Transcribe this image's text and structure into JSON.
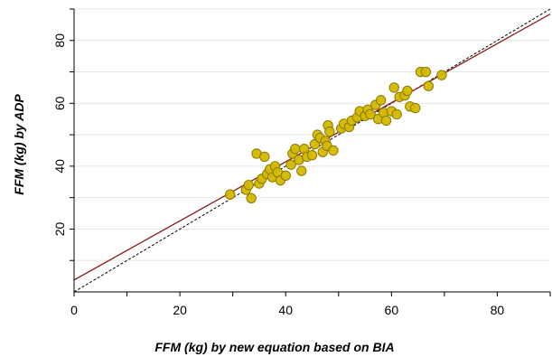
{
  "chart_data": {
    "type": "scatter",
    "xlabel": "FFM (kg) by new equation based on BIA",
    "ylabel": "FFM (kg) by  ADP",
    "xlim": [
      0,
      90
    ],
    "ylim": [
      0,
      90
    ],
    "xticks": [
      0,
      20,
      40,
      60,
      80
    ],
    "yticks": [
      20,
      40,
      60,
      80
    ],
    "grid": "horizontal",
    "legend": "none",
    "colors": {
      "point_fill": "#d4b800",
      "point_stroke": "#8c7a00",
      "regression_line": "#8b1a1a",
      "identity_line": "#000000",
      "grid": "#e6e6e6"
    },
    "regression_line": {
      "intercept": 3.8,
      "slope": 0.94,
      "style": "solid"
    },
    "identity_line": {
      "intercept": 0,
      "slope": 1,
      "style": "dashed"
    },
    "points": [
      {
        "x": 29.5,
        "y": 31.0
      },
      {
        "x": 32.5,
        "y": 32.5
      },
      {
        "x": 33.0,
        "y": 34.0
      },
      {
        "x": 33.5,
        "y": 29.8
      },
      {
        "x": 34.5,
        "y": 44.0
      },
      {
        "x": 35.0,
        "y": 34.5
      },
      {
        "x": 35.5,
        "y": 36.0
      },
      {
        "x": 36.0,
        "y": 43.0
      },
      {
        "x": 36.5,
        "y": 37.5
      },
      {
        "x": 37.0,
        "y": 39.0
      },
      {
        "x": 37.5,
        "y": 36.5
      },
      {
        "x": 38.0,
        "y": 40.0
      },
      {
        "x": 38.5,
        "y": 38.0
      },
      {
        "x": 39.0,
        "y": 35.5
      },
      {
        "x": 40.0,
        "y": 37.0
      },
      {
        "x": 41.0,
        "y": 40.5
      },
      {
        "x": 41.3,
        "y": 44.0
      },
      {
        "x": 41.8,
        "y": 45.5
      },
      {
        "x": 42.5,
        "y": 42.0
      },
      {
        "x": 43.0,
        "y": 38.5
      },
      {
        "x": 43.5,
        "y": 45.5
      },
      {
        "x": 44.0,
        "y": 43.0
      },
      {
        "x": 45.0,
        "y": 43.5
      },
      {
        "x": 45.5,
        "y": 47.0
      },
      {
        "x": 46.0,
        "y": 50.0
      },
      {
        "x": 46.5,
        "y": 49.0
      },
      {
        "x": 47.0,
        "y": 44.5
      },
      {
        "x": 47.5,
        "y": 48.0
      },
      {
        "x": 47.8,
        "y": 46.5
      },
      {
        "x": 48.0,
        "y": 53.0
      },
      {
        "x": 48.3,
        "y": 51.0
      },
      {
        "x": 49.0,
        "y": 45.0
      },
      {
        "x": 50.5,
        "y": 52.0
      },
      {
        "x": 51.0,
        "y": 53.5
      },
      {
        "x": 52.0,
        "y": 52.5
      },
      {
        "x": 52.5,
        "y": 54.5
      },
      {
        "x": 53.5,
        "y": 55.5
      },
      {
        "x": 54.0,
        "y": 57.5
      },
      {
        "x": 55.0,
        "y": 56.0
      },
      {
        "x": 55.5,
        "y": 58.0
      },
      {
        "x": 56.0,
        "y": 56.5
      },
      {
        "x": 57.0,
        "y": 59.5
      },
      {
        "x": 57.5,
        "y": 55.0
      },
      {
        "x": 58.0,
        "y": 61.0
      },
      {
        "x": 58.5,
        "y": 57.0
      },
      {
        "x": 59.0,
        "y": 54.5
      },
      {
        "x": 60.0,
        "y": 57.5
      },
      {
        "x": 60.5,
        "y": 65.0
      },
      {
        "x": 61.0,
        "y": 56.5
      },
      {
        "x": 61.5,
        "y": 62.0
      },
      {
        "x": 62.5,
        "y": 62.5
      },
      {
        "x": 63.0,
        "y": 64.0
      },
      {
        "x": 63.5,
        "y": 59.0
      },
      {
        "x": 64.5,
        "y": 58.5
      },
      {
        "x": 65.5,
        "y": 70.0
      },
      {
        "x": 66.5,
        "y": 70.0
      },
      {
        "x": 67.0,
        "y": 65.5
      },
      {
        "x": 69.5,
        "y": 69.0
      }
    ]
  }
}
